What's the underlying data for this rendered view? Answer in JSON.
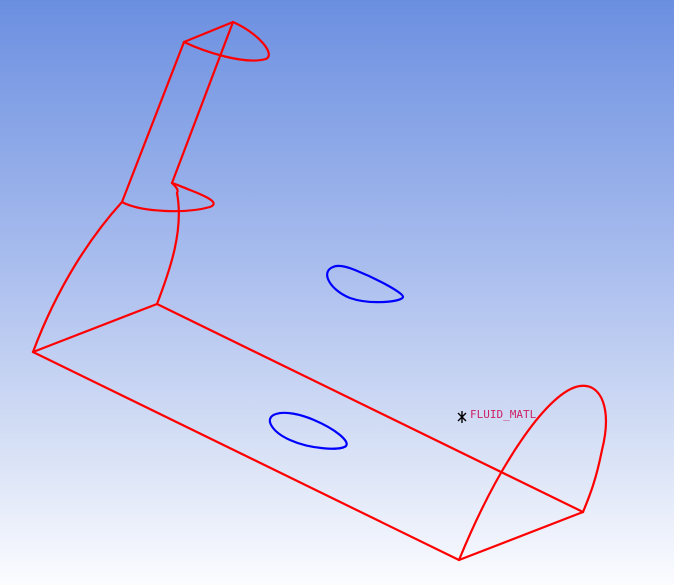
{
  "colors": {
    "background_top": "#6b8fe0",
    "background_bottom": "#fbfcff",
    "edge_color": "#ff0000",
    "hole_color": "#0000ff",
    "marker_color": "#000000",
    "label_color": "#cc2266"
  },
  "annotation": {
    "label": "FLUID_MATL"
  }
}
